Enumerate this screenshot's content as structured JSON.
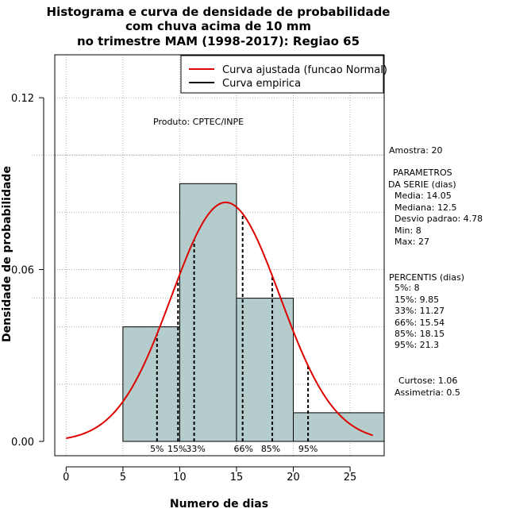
{
  "chart_data": {
    "type": "histogram",
    "title": [
      "Histograma e curva de densidade de probabilidade",
      "com chuva acima de 10 mm",
      "no trimestre MAM (1998-2017): Regiao 65"
    ],
    "xlabel": "Numero de dias",
    "ylabel": "Densidade de probabilidade",
    "xlim": [
      -1,
      28
    ],
    "ylim": [
      -0.005,
      0.135
    ],
    "x_ticks": [
      0,
      5,
      10,
      15,
      20,
      25
    ],
    "y_ticks": [
      0.0,
      0.06,
      0.12
    ],
    "y_tick_labels": [
      "0.00",
      "0.06",
      "0.12"
    ],
    "bars": [
      {
        "x0": 5,
        "x1": 10,
        "density": 0.04
      },
      {
        "x0": 10,
        "x1": 15,
        "density": 0.09
      },
      {
        "x0": 15,
        "x1": 20,
        "density": 0.05
      },
      {
        "x0": 20,
        "x1": 28,
        "density": 0.01
      }
    ],
    "normal_curve": {
      "mean": 14.05,
      "sd": 4.78,
      "x_range": [
        0,
        27
      ],
      "color": "#dd0000"
    },
    "percentile_lines": [
      {
        "label": "5%",
        "x": 8
      },
      {
        "label": "15%",
        "x": 9.85
      },
      {
        "label": "33%",
        "x": 11.27
      },
      {
        "label": "66%",
        "x": 15.54
      },
      {
        "label": "85%",
        "x": 18.15
      },
      {
        "label": "95%",
        "x": 21.3
      }
    ],
    "legend": [
      {
        "label": "Curva ajustada (funcao Normal)",
        "color": "#dd0000"
      },
      {
        "label": "Curva empirica",
        "color": "#000000"
      }
    ],
    "product_note": "Produto: CPTEC/INPE",
    "bar_color": "#b4cccb",
    "side_text": [
      "Amostra: 20",
      "PARAMETROS",
      "DA SERIE (dias)",
      "Media: 14.05",
      "Mediana: 12.5",
      "Desvio padrao: 4.78",
      "Min: 8",
      "Max: 27",
      "PERCENTIS (dias)",
      "5%: 8",
      "15%: 9.85",
      "33%: 11.27",
      "66%: 15.54",
      "85%: 18.15",
      "95%: 21.3",
      "Curtose: 1.06",
      "Assimetria: 0.5"
    ]
  }
}
